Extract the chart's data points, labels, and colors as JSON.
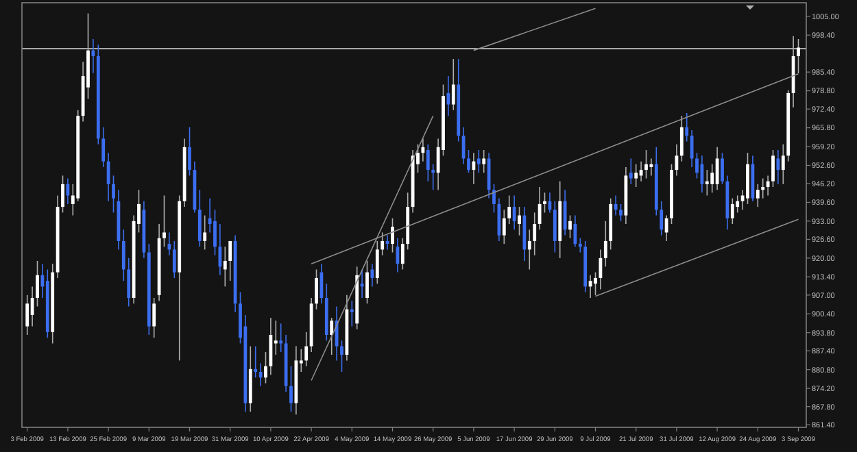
{
  "chart_data": {
    "type": "candlestick",
    "categories": [
      "3 Feb 2009",
      null,
      null,
      null,
      null,
      null,
      null,
      null,
      "13 Feb 2009",
      null,
      null,
      null,
      null,
      null,
      null,
      null,
      "25 Feb 2009",
      null,
      null,
      null,
      null,
      null,
      null,
      null,
      "9 Mar 2009",
      null,
      null,
      null,
      null,
      null,
      null,
      null,
      "19 Mar 2009",
      null,
      null,
      null,
      null,
      null,
      null,
      null,
      "31 Mar 2009",
      null,
      null,
      null,
      null,
      null,
      null,
      null,
      "10 Apr 2009",
      null,
      null,
      null,
      null,
      null,
      null,
      null,
      "22 Apr 2009",
      null,
      null,
      null,
      null,
      null,
      null,
      null,
      "4 May 2009",
      null,
      null,
      null,
      null,
      null,
      null,
      null,
      "14 May 2009",
      null,
      null,
      null,
      null,
      null,
      null,
      null,
      "26 May 2009",
      null,
      null,
      null,
      null,
      null,
      null,
      null,
      "5 Jun 2009",
      null,
      null,
      null,
      null,
      null,
      null,
      null,
      "17 Jun 2009",
      null,
      null,
      null,
      null,
      null,
      null,
      null,
      "29 Jun 2009",
      null,
      null,
      null,
      null,
      null,
      null,
      null,
      "9 Jul 2009",
      null,
      null,
      null,
      null,
      null,
      null,
      null,
      "21 Jul 2009",
      null,
      null,
      null,
      null,
      null,
      null,
      null,
      "31 Jul 2009",
      null,
      null,
      null,
      null,
      null,
      null,
      null,
      "12 Aug 2009",
      null,
      null,
      null,
      null,
      null,
      null,
      null,
      "24 Aug 2009",
      null,
      null,
      null,
      null,
      null,
      null,
      null,
      "3 Sep 2009"
    ],
    "ohlc": [
      [
        896,
        907,
        893,
        904
      ],
      [
        900,
        910,
        896,
        906
      ],
      [
        906,
        919,
        903,
        914
      ],
      [
        914,
        918,
        906,
        910
      ],
      [
        912,
        916,
        892,
        894
      ],
      [
        894,
        918,
        890,
        915
      ],
      [
        915,
        942,
        913,
        938
      ],
      [
        938,
        949,
        936,
        946
      ],
      [
        946,
        948,
        939,
        942
      ],
      [
        939,
        946,
        935,
        942
      ],
      [
        941,
        972,
        940,
        970
      ],
      [
        970,
        989,
        968,
        984
      ],
      [
        980,
        1006,
        976,
        993
      ],
      [
        993,
        997,
        985,
        991
      ],
      [
        991,
        995,
        960,
        962
      ],
      [
        962,
        966,
        952,
        954
      ],
      [
        954,
        957,
        940,
        946
      ],
      [
        946,
        949,
        936,
        941
      ],
      [
        940,
        944,
        923,
        926
      ],
      [
        926,
        930,
        912,
        916
      ],
      [
        916,
        920,
        903,
        906
      ],
      [
        906,
        935,
        904,
        933
      ],
      [
        932,
        944,
        929,
        939
      ],
      [
        937,
        940,
        920,
        922
      ],
      [
        922,
        925,
        893,
        896
      ],
      [
        896,
        906,
        892,
        904
      ],
      [
        907,
        932,
        905,
        927
      ],
      [
        927,
        942,
        924,
        929
      ],
      [
        925,
        929,
        921,
        923
      ],
      [
        923,
        926,
        913,
        915
      ],
      [
        915,
        942,
        884,
        940
      ],
      [
        940,
        962,
        938,
        959
      ],
      [
        959,
        966,
        949,
        951
      ],
      [
        951,
        954,
        936,
        937
      ],
      [
        937,
        944,
        924,
        926
      ],
      [
        926,
        935,
        923,
        929
      ],
      [
        934,
        941,
        929,
        932
      ],
      [
        933,
        937,
        921,
        924
      ],
      [
        924,
        932,
        914,
        917
      ],
      [
        916,
        924,
        910,
        919
      ],
      [
        919,
        926,
        912,
        926
      ],
      [
        926,
        928,
        901,
        904
      ],
      [
        904,
        908,
        890,
        892
      ],
      [
        896,
        900,
        866,
        869
      ],
      [
        869,
        889,
        866,
        881
      ],
      [
        881,
        889,
        878,
        880
      ],
      [
        880,
        883,
        875,
        878
      ],
      [
        878,
        887,
        876,
        882
      ],
      [
        882,
        899,
        879,
        893
      ],
      [
        890,
        898,
        886,
        891
      ],
      [
        891,
        897,
        887,
        890
      ],
      [
        890,
        893,
        873,
        875
      ],
      [
        875,
        882,
        866,
        869
      ],
      [
        869,
        889,
        865,
        884
      ],
      [
        883,
        888,
        880,
        884
      ],
      [
        884,
        894,
        882,
        889
      ],
      [
        889,
        906,
        887,
        904
      ],
      [
        904,
        916,
        902,
        913
      ],
      [
        915,
        918,
        904,
        906
      ],
      [
        906,
        911,
        891,
        893
      ],
      [
        893,
        899,
        886,
        898
      ],
      [
        898,
        903,
        884,
        889
      ],
      [
        889,
        891,
        880,
        886
      ],
      [
        886,
        907,
        884,
        902
      ],
      [
        902,
        905,
        896,
        901
      ],
      [
        897,
        917,
        895,
        914
      ],
      [
        911,
        916,
        906,
        910
      ],
      [
        906,
        919,
        904,
        915
      ],
      [
        916,
        918,
        910,
        913
      ],
      [
        913,
        926,
        911,
        923
      ],
      [
        923,
        929,
        921,
        926
      ],
      [
        926,
        928,
        923,
        925
      ],
      [
        925,
        934,
        922,
        931
      ],
      [
        924,
        927,
        915,
        918
      ],
      [
        918,
        927,
        916,
        925
      ],
      [
        925,
        943,
        923,
        938
      ],
      [
        938,
        958,
        936,
        956
      ],
      [
        953,
        960,
        950,
        957
      ],
      [
        957,
        962,
        954,
        959
      ],
      [
        958,
        960,
        947,
        951
      ],
      [
        951,
        953,
        944,
        950
      ],
      [
        950,
        962,
        944,
        959
      ],
      [
        958,
        981,
        956,
        977
      ],
      [
        978,
        984,
        970,
        974
      ],
      [
        974,
        990,
        972,
        981
      ],
      [
        981,
        990,
        961,
        963
      ],
      [
        963,
        966,
        953,
        955
      ],
      [
        955,
        958,
        950,
        951
      ],
      [
        951,
        957,
        946,
        954
      ],
      [
        955,
        958,
        950,
        953
      ],
      [
        953,
        958,
        950,
        955
      ],
      [
        955,
        957,
        941,
        944
      ],
      [
        944,
        946,
        936,
        939
      ],
      [
        939,
        941,
        926,
        928
      ],
      [
        928,
        937,
        925,
        934
      ],
      [
        934,
        942,
        932,
        938
      ],
      [
        938,
        942,
        930,
        933
      ],
      [
        932,
        938,
        928,
        935
      ],
      [
        935,
        938,
        919,
        923
      ],
      [
        923,
        930,
        916,
        926
      ],
      [
        926,
        936,
        921,
        932
      ],
      [
        932,
        945,
        930,
        939
      ],
      [
        939,
        943,
        936,
        940
      ],
      [
        940,
        943,
        936,
        937
      ],
      [
        937,
        940,
        922,
        926
      ],
      [
        926,
        947,
        920,
        940
      ],
      [
        940,
        944,
        928,
        930
      ],
      [
        930,
        935,
        927,
        933
      ],
      [
        932,
        935,
        924,
        925
      ],
      [
        925,
        927,
        922,
        924
      ],
      [
        924,
        926,
        908,
        910
      ],
      [
        910,
        914,
        906,
        912
      ],
      [
        911,
        915,
        907,
        913
      ],
      [
        913,
        923,
        909,
        920
      ],
      [
        920,
        933,
        917,
        926
      ],
      [
        926,
        941,
        923,
        939
      ],
      [
        939,
        942,
        935,
        937
      ],
      [
        937,
        939,
        933,
        935
      ],
      [
        935,
        952,
        932,
        949
      ],
      [
        950,
        955,
        946,
        948
      ],
      [
        948,
        953,
        945,
        950
      ],
      [
        949,
        954,
        947,
        951
      ],
      [
        951,
        958,
        948,
        953
      ],
      [
        952,
        955,
        949,
        953
      ],
      [
        953,
        959,
        935,
        937
      ],
      [
        937,
        940,
        928,
        930
      ],
      [
        929,
        935,
        926,
        934
      ],
      [
        934,
        953,
        932,
        951
      ],
      [
        951,
        960,
        949,
        956
      ],
      [
        956,
        970,
        954,
        966
      ],
      [
        966,
        971,
        961,
        963
      ],
      [
        963,
        965,
        952,
        955
      ],
      [
        955,
        957,
        948,
        950
      ],
      [
        953,
        956,
        943,
        946
      ],
      [
        946,
        951,
        942,
        947
      ],
      [
        946,
        953,
        943,
        950
      ],
      [
        946,
        959,
        944,
        955
      ],
      [
        955,
        957,
        946,
        947
      ],
      [
        947,
        949,
        930,
        934
      ],
      [
        934,
        941,
        932,
        939
      ],
      [
        938,
        942,
        936,
        940
      ],
      [
        940,
        944,
        937,
        942
      ],
      [
        941,
        957,
        939,
        953
      ],
      [
        953,
        956,
        940,
        941
      ],
      [
        941,
        946,
        938,
        944
      ],
      [
        944,
        948,
        941,
        945
      ],
      [
        945,
        949,
        942,
        947
      ],
      [
        947,
        958,
        945,
        956
      ],
      [
        955,
        958,
        946,
        951
      ],
      [
        951,
        960,
        946,
        956
      ],
      [
        956,
        979,
        954,
        978
      ],
      [
        978,
        998,
        973,
        991
      ],
      [
        991,
        997,
        985,
        994
      ]
    ],
    "series": [
      {
        "type": "line",
        "color": "#8c8c8c",
        "x": [
          "22 Apr 2009",
          "26 May 2009"
        ],
        "values": [
          877,
          970
        ]
      },
      {
        "type": "line",
        "color": "#8c8c8c",
        "x": [
          "22 Apr 2009",
          "3 Sep 2009"
        ],
        "values": [
          918,
          984.8
        ]
      },
      {
        "type": "line",
        "color": "#8c8c8c",
        "x": [
          "9 Jul 2009",
          "3 Sep 2009"
        ],
        "values": [
          906.6,
          933.6
        ]
      },
      {
        "type": "line",
        "color": "#8c8c8c",
        "x": [
          "5 Jun 2009",
          "9 Jul 2009"
        ],
        "values": [
          993,
          1007.8
        ]
      }
    ],
    "ref_lines": [
      {
        "axis": "y",
        "value": 993.6,
        "color": "#c8c8c8"
      }
    ],
    "ylim": [
      860.5,
      1008.8
    ],
    "yticks": [
      {
        "value": 1005,
        "label": "1005.00"
      },
      {
        "value": 998.4,
        "label": "998.40"
      },
      {
        "value": 985.4,
        "label": "985.40"
      },
      {
        "value": 978.8,
        "label": "978.80"
      },
      {
        "value": 972.4,
        "label": "972.40"
      },
      {
        "value": 965.8,
        "label": "965.80"
      },
      {
        "value": 959.2,
        "label": "959.20"
      },
      {
        "value": 952.6,
        "label": "952.60"
      },
      {
        "value": 946.2,
        "label": "946.20"
      },
      {
        "value": 939.6,
        "label": "939.60"
      },
      {
        "value": 933,
        "label": "933.00"
      },
      {
        "value": 926.6,
        "label": "926.60"
      },
      {
        "value": 920,
        "label": "920.00"
      },
      {
        "value": 913.4,
        "label": "913.40"
      },
      {
        "value": 907,
        "label": "907.00"
      },
      {
        "value": 900.4,
        "label": "900.40"
      },
      {
        "value": 893.8,
        "label": "893.80"
      },
      {
        "value": 887.4,
        "label": "887.40"
      },
      {
        "value": 880.8,
        "label": "880.80"
      },
      {
        "value": 874.2,
        "label": "874.20"
      },
      {
        "value": 867.8,
        "label": "867.80"
      },
      {
        "value": 861.4,
        "label": "861.40"
      }
    ]
  }
}
